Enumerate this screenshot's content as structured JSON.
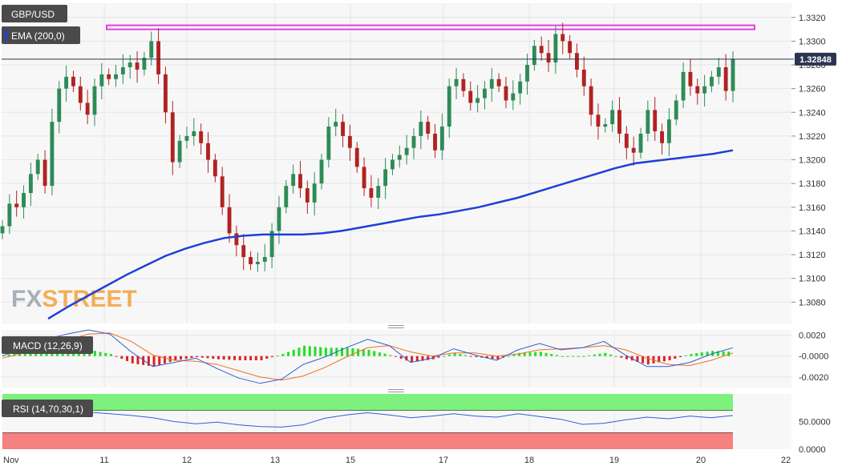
{
  "colors": {
    "panel_bg": "#f7f7f7",
    "grid": "#e6e6e6",
    "candle_up": "#2e8b57",
    "candle_down": "#b22222",
    "ema": "#1f3fd6",
    "resistance": "#e040e0",
    "last_price_line": "#2b3553",
    "last_price_tag_bg": "#2b3553",
    "label_bg": "#4a4a4a",
    "macd_line": "#2f5fd6",
    "signal_line": "#f07020",
    "hist_up": "#22dd22",
    "hist_down": "#dd2222",
    "rsi_line": "#2f5fd6",
    "rsi_overbought": "#7ef07e",
    "rsi_oversold": "#f78080",
    "watermark_fx": "#9aa3ad",
    "watermark_street": "#f2a33a"
  },
  "chart_data": [
    {
      "type": "candlestick",
      "label": "GBP/USD",
      "overlay_label": "EMA (200,0)",
      "last_price": "1.32848",
      "resistance_level": 1.3312,
      "x_tick_labels": [
        "Nov",
        "11",
        "12",
        "13",
        "15",
        "17",
        "18",
        "19",
        "20",
        "22"
      ],
      "y_tick_labels": [
        "1.3320",
        "1.3300",
        "1.3280",
        "1.3260",
        "1.3240",
        "1.3220",
        "1.3200",
        "1.3180",
        "1.3160",
        "1.3140",
        "1.3120",
        "1.3100",
        "1.3080"
      ],
      "ylim": [
        1.3062,
        1.3332
      ],
      "grid": true,
      "closes": [
        1.3144,
        1.3163,
        1.316,
        1.3172,
        1.3188,
        1.32,
        1.3178,
        1.3232,
        1.326,
        1.327,
        1.3262,
        1.3248,
        1.3238,
        1.3262,
        1.3272,
        1.3268,
        1.3272,
        1.3278,
        1.3282,
        1.3276,
        1.3286,
        1.33,
        1.3272,
        1.324,
        1.3198,
        1.3216,
        1.322,
        1.3224,
        1.3214,
        1.32,
        1.3186,
        1.316,
        1.3138,
        1.3128,
        1.3118,
        1.3112,
        1.3114,
        1.3118,
        1.314,
        1.316,
        1.3178,
        1.3188,
        1.3176,
        1.3164,
        1.318,
        1.32,
        1.3228,
        1.3232,
        1.322,
        1.321,
        1.3194,
        1.3176,
        1.3168,
        1.3178,
        1.3192,
        1.32,
        1.3204,
        1.321,
        1.322,
        1.3232,
        1.3222,
        1.3208,
        1.3228,
        1.3262,
        1.3268,
        1.3258,
        1.3248,
        1.3252,
        1.326,
        1.3268,
        1.3262,
        1.325,
        1.3256,
        1.3266,
        1.328,
        1.3296,
        1.329,
        1.3282,
        1.3306,
        1.33,
        1.329,
        1.3276,
        1.3262,
        1.3238,
        1.3228,
        1.323,
        1.3242,
        1.3222,
        1.321,
        1.3206,
        1.3222,
        1.3242,
        1.3224,
        1.3214,
        1.3234,
        1.325,
        1.3274,
        1.3262,
        1.3256,
        1.3262,
        1.327,
        1.3278,
        1.3258,
        1.3285
      ],
      "ema_200": [
        1.3066,
        1.3076,
        1.3085,
        1.3094,
        1.3103,
        1.3111,
        1.3119,
        1.3125,
        1.313,
        1.3134,
        1.3136,
        1.3137,
        1.3137,
        1.3137,
        1.3138,
        1.314,
        1.3143,
        1.3146,
        1.3149,
        1.3152,
        1.3154,
        1.3157,
        1.316,
        1.3164,
        1.3168,
        1.3173,
        1.3178,
        1.3183,
        1.3188,
        1.3193,
        1.3197,
        1.3199,
        1.3201,
        1.3203,
        1.3205,
        1.3208
      ],
      "macd": {
        "label": "MACD (12,26,9)",
        "y_tick_labels": [
          "0.0020",
          "-0.0000",
          "-0.0020"
        ],
        "ylim": [
          -0.003,
          0.0025
        ],
        "macd_line": [
          0.0,
          0.0008,
          0.0016,
          0.0021,
          0.0025,
          0.0021,
          0.0004,
          -0.001,
          -0.0006,
          -0.0002,
          -0.0012,
          -0.0021,
          -0.0026,
          -0.0022,
          -0.0008,
          -0.0001,
          0.0008,
          0.0016,
          0.001,
          -0.0006,
          -0.0002,
          0.0007,
          0.0001,
          -0.0004,
          0.0006,
          0.0012,
          0.0006,
          0.0008,
          0.0014,
          0.0001,
          -0.001,
          -0.001,
          -0.0006,
          0.0002,
          0.0008
        ],
        "signal_line": [
          -0.0002,
          0.0003,
          0.0009,
          0.0015,
          0.0021,
          0.0022,
          0.0014,
          0.0001,
          -0.0004,
          -0.0005,
          -0.0008,
          -0.0014,
          -0.002,
          -0.0023,
          -0.0019,
          -0.0011,
          -0.0001,
          0.0008,
          0.001,
          0.0004,
          0.0,
          0.0003,
          0.0003,
          0.0,
          0.0002,
          0.0006,
          0.0007,
          0.0008,
          0.001,
          0.0006,
          -0.0002,
          -0.0008,
          -0.0009,
          -0.0004,
          0.0003
        ],
        "histogram": [
          0.0001,
          0.0004,
          0.0007,
          0.0008,
          0.0006,
          0.0002,
          -0.0007,
          -0.001,
          -0.0004,
          -0.0001,
          -0.0003,
          -0.0004,
          -0.0004,
          0.0002,
          0.001,
          0.0008,
          0.0008,
          0.0006,
          0.0001,
          -0.0006,
          -0.0003,
          0.0003,
          -0.0001,
          -0.0003,
          0.0003,
          0.0004,
          0.0,
          0.0,
          0.0003,
          -0.0003,
          -0.0008,
          -0.0004,
          0.0002,
          0.0005,
          0.0004
        ]
      },
      "rsi": {
        "label": "RSI (14,70,30,1)",
        "y_tick_labels": [
          "50.0000",
          "0.0000"
        ],
        "ylim": [
          0,
          100
        ],
        "overbought": 70,
        "oversold": 30,
        "values": [
          62,
          64,
          66,
          63,
          67,
          64,
          61,
          57,
          50,
          46,
          49,
          44,
          41,
          40,
          44,
          56,
          62,
          66,
          62,
          57,
          60,
          64,
          60,
          58,
          64,
          59,
          54,
          45,
          47,
          53,
          58,
          55,
          60,
          57,
          61
        ]
      }
    }
  ],
  "watermark": {
    "prefix": "FX",
    "suffix": "STREET"
  }
}
